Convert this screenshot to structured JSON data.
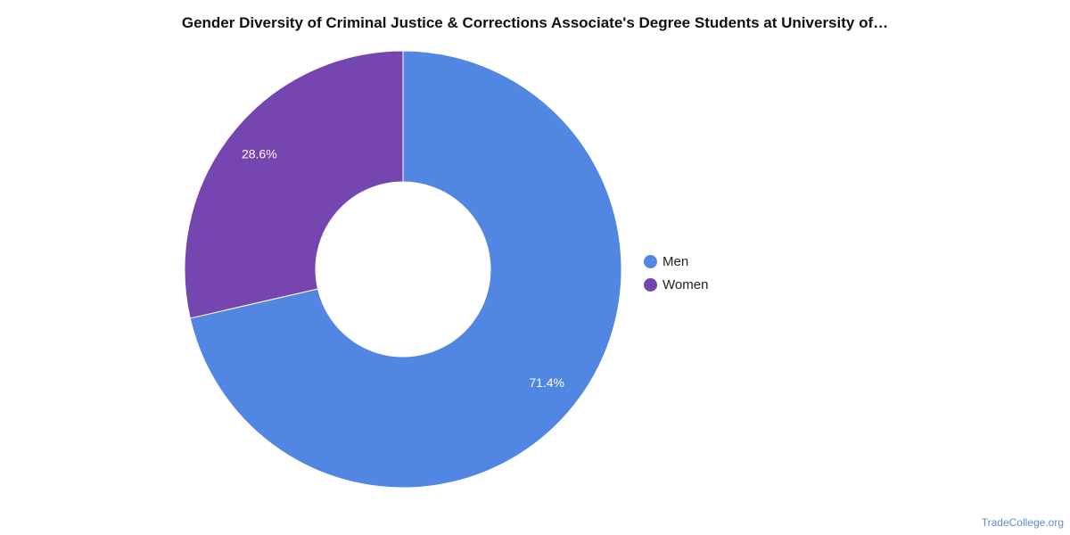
{
  "chart_data": {
    "type": "pie",
    "title": "Gender Diversity of Criminal Justice & Corrections Associate's Degree Students at University of…",
    "categories": [
      "Men",
      "Women"
    ],
    "values": [
      71.4,
      28.6
    ],
    "data_labels": [
      "71.4%",
      "28.6%"
    ],
    "colors": [
      "#5286e3",
      "#7546b0"
    ],
    "legend_position": "right"
  },
  "legend": {
    "items": [
      {
        "label": "Men",
        "color": "#5286e3"
      },
      {
        "label": "Women",
        "color": "#7546b0"
      }
    ]
  },
  "footer": {
    "source": "TradeCollege.org"
  }
}
